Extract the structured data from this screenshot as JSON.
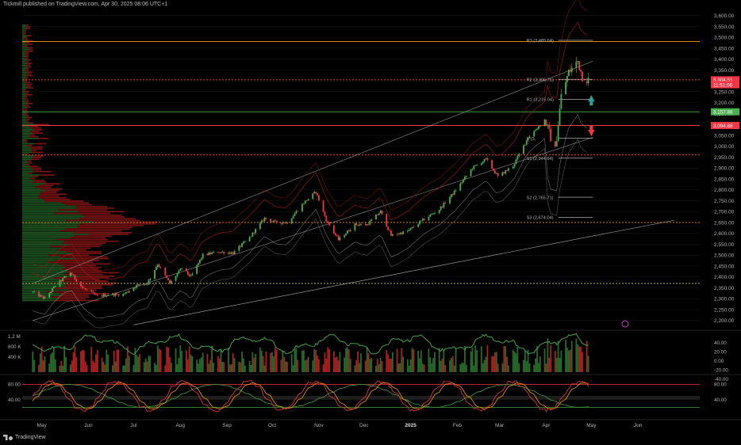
{
  "header": {
    "text": "Tickmill published on TradingView.com, Apr 30, 2025 08:06 UTC+1"
  },
  "footer": {
    "brand": "TradingView"
  },
  "chart_data": {
    "type": "candlestick",
    "symbol_panel": {
      "yticks": [
        "3,600.00",
        "3,550.00",
        "3,500.00",
        "3,450.00",
        "3,400.00",
        "3,350.00",
        "3,300.00",
        "3,250.00",
        "3,200.00",
        "3,150.00",
        "3,100.00",
        "3,050.00",
        "3,000.00",
        "2,950.00",
        "2,900.00",
        "2,850.00",
        "2,800.00",
        "2,750.00",
        "2,700.00",
        "2,650.00",
        "2,600.00",
        "2,550.00",
        "2,500.00",
        "2,450.00",
        "2,400.00",
        "2,350.00",
        "2,300.00",
        "2,250.00",
        "2,200.00"
      ],
      "ylim": [
        2170,
        3620
      ],
      "close_pts": [
        [
          "2024-04-25",
          2330
        ],
        [
          "2024-05-03",
          2300
        ],
        [
          "2024-05-10",
          2360
        ],
        [
          "2024-05-20",
          2420
        ],
        [
          "2024-05-28",
          2350
        ],
        [
          "2024-06-07",
          2310
        ],
        [
          "2024-06-14",
          2320
        ],
        [
          "2024-06-24",
          2320
        ],
        [
          "2024-07-03",
          2360
        ],
        [
          "2024-07-10",
          2370
        ],
        [
          "2024-07-17",
          2460
        ],
        [
          "2024-07-25",
          2370
        ],
        [
          "2024-08-02",
          2440
        ],
        [
          "2024-08-08",
          2400
        ],
        [
          "2024-08-16",
          2500
        ],
        [
          "2024-08-26",
          2515
        ],
        [
          "2024-09-05",
          2510
        ],
        [
          "2024-09-16",
          2580
        ],
        [
          "2024-09-26",
          2670
        ],
        [
          "2024-10-03",
          2650
        ],
        [
          "2024-10-11",
          2650
        ],
        [
          "2024-10-22",
          2740
        ],
        [
          "2024-10-30",
          2790
        ],
        [
          "2024-11-06",
          2660
        ],
        [
          "2024-11-14",
          2570
        ],
        [
          "2024-11-25",
          2640
        ],
        [
          "2024-12-03",
          2640
        ],
        [
          "2024-12-12",
          2700
        ],
        [
          "2024-12-19",
          2590
        ],
        [
          "2024-12-30",
          2610
        ],
        [
          "2025-01-09",
          2660
        ],
        [
          "2025-01-20",
          2710
        ],
        [
          "2025-01-30",
          2790
        ],
        [
          "2025-02-11",
          2900
        ],
        [
          "2025-02-20",
          2940
        ],
        [
          "2025-02-28",
          2860
        ],
        [
          "2025-03-10",
          2910
        ],
        [
          "2025-03-20",
          3040
        ],
        [
          "2025-03-31",
          3120
        ],
        [
          "2025-04-07",
          2980
        ],
        [
          "2025-04-11",
          3230
        ],
        [
          "2025-04-16",
          3340
        ],
        [
          "2025-04-22",
          3390
        ],
        [
          "2025-04-25",
          3320
        ],
        [
          "2025-04-29",
          3304
        ]
      ],
      "price_labels": [
        {
          "text": "3,304.51",
          "value": 3304.51,
          "color": "#f23645"
        },
        {
          "text": "11:51:06",
          "value": 3282,
          "color": "#f23645"
        },
        {
          "text": "3,157.88",
          "value": 3157.88,
          "color": "#4caf50"
        },
        {
          "text": "3,094.88",
          "value": 3094.88,
          "color": "#f23645"
        }
      ],
      "pivots": [
        {
          "text": "R3 (3,485.64)",
          "value": 3485.64
        },
        {
          "text": "R2 (3,306.71)",
          "value": 3306.71
        },
        {
          "text": "R1 (3,215.04)",
          "value": 3215.04
        },
        {
          "text": "P (3,",
          "value": 3036
        },
        {
          "text": "S1 (2,944.64)",
          "value": 2944.64
        },
        {
          "text": "S2 (2,765.71)",
          "value": 2765.71
        },
        {
          "text": "S3 (2,674.04)",
          "value": 2674.04
        }
      ],
      "levels": [
        {
          "value": 3480,
          "color": "#ff9800",
          "style": "solid"
        },
        {
          "value": 3304.51,
          "color": "#f23645",
          "style": "dotted"
        },
        {
          "value": 3157.88,
          "color": "#4caf50",
          "style": "solid"
        },
        {
          "value": 3094.88,
          "color": "#f23645",
          "style": "solid"
        },
        {
          "value": 2960,
          "color": "#f23645",
          "style": "dotted"
        },
        {
          "value": 2650,
          "color": "#ff9800",
          "style": "dotted"
        },
        {
          "value": 2370,
          "color": "#c8c864",
          "style": "dotted"
        }
      ],
      "trendlines": [
        {
          "p1": [
            "2024-04-25",
            2370
          ],
          "p2": [
            "2025-05-02",
            3390
          ],
          "color": "#9e9e9e"
        },
        {
          "p1": [
            "2024-04-25",
            2200
          ],
          "p2": [
            "2025-05-02",
            3040
          ],
          "color": "#9e9e9e"
        },
        {
          "p1": [
            "2024-07-01",
            2180
          ],
          "p2": [
            "2025-06-25",
            2660
          ],
          "color": "#bdbdbd"
        }
      ]
    },
    "volume_panel": {
      "yticks": [
        "1.2 M",
        "800 K",
        "400 K"
      ],
      "right_ticks": [
        "40.00",
        "20.00",
        "0.00",
        "-20.00",
        "-40.00"
      ]
    },
    "oscillator_panel": {
      "left_ticks": [
        "80.00",
        "40.00"
      ],
      "right_ticks": [
        "80.00",
        "40.00"
      ],
      "upper": 80,
      "lower": 20
    },
    "x_labels": [
      "May",
      "Jun",
      "Jul",
      "Aug",
      "Sep",
      "Oct",
      "Nov",
      "Dec",
      "2025",
      "Feb",
      "Mar",
      "Apr",
      "May",
      "Jun"
    ],
    "x_label_dates": [
      "2024-05-01",
      "2024-06-01",
      "2024-07-01",
      "2024-08-01",
      "2024-09-01",
      "2024-10-01",
      "2024-11-01",
      "2024-12-01",
      "2025-01-01",
      "2025-02-01",
      "2025-03-01",
      "2025-04-01",
      "2025-05-01",
      "2025-06-01"
    ],
    "x_range": [
      "2024-04-18",
      "2025-07-12"
    ]
  },
  "colors": {
    "up": "#4caf50",
    "down": "#f23645",
    "grid": "#1a1a1a",
    "text": "#b2b2b2",
    "bg": "#000000"
  }
}
